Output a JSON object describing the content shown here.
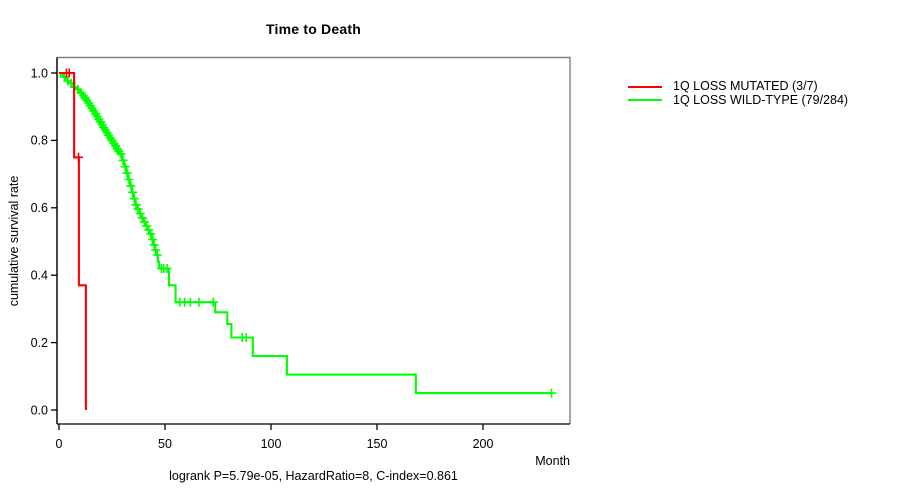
{
  "figure": {
    "title": "Time to Death",
    "x_axis_label": "Month",
    "y_axis_label": "cumulative survival rate",
    "footnote": "logrank P=5.79e-05, HazardRatio=8, C-index=0.861"
  },
  "legend": {
    "entries": [
      {
        "label": "1Q LOSS MUTATED (3/7)",
        "color": "#ff0000"
      },
      {
        "label": "1Q LOSS WILD-TYPE (79/284)",
        "color": "#00ff00"
      }
    ]
  },
  "chart_data": {
    "type": "line",
    "subtype": "kaplan-meier-step",
    "title": "Time to Death",
    "xlabel": "Month",
    "ylabel": "cumulative survival rate",
    "annotation": "logrank P=5.79e-05, HazardRatio=8, C-index=0.861",
    "x_ticks": [
      0,
      50,
      100,
      150,
      200
    ],
    "y_ticks": [
      0.0,
      0.2,
      0.4,
      0.6,
      0.8,
      1.0
    ],
    "y_tick_labels": [
      "0.0",
      "0.2",
      "0.4",
      "0.6",
      "0.8",
      "1.0"
    ],
    "xlim": [
      0,
      241
    ],
    "ylim": [
      0,
      1
    ],
    "grid": false,
    "legend_position": "right-outside",
    "axis_color": "#000000",
    "box_color": "#808080",
    "series": [
      {
        "name": "1Q LOSS MUTATED (3/7)",
        "color": "#ff0000",
        "end_time": 12.7,
        "steps": [
          [
            0,
            1.0
          ],
          [
            7.1,
            0.75
          ],
          [
            9.4,
            0.37
          ],
          [
            12.7,
            0.0
          ]
        ],
        "censor_marks": [
          [
            3.5,
            1.0
          ],
          [
            4.8,
            1.0
          ],
          [
            9.2,
            0.75
          ]
        ]
      },
      {
        "name": "1Q LOSS WILD-TYPE (79/284)",
        "color": "#00ff00",
        "end_time": 232.3,
        "steps": [
          [
            0,
            1.0
          ],
          [
            1,
            0.994
          ],
          [
            2,
            0.988
          ],
          [
            3,
            0.982
          ],
          [
            4,
            0.976
          ],
          [
            5,
            0.97
          ],
          [
            6,
            0.964
          ],
          [
            7,
            0.958
          ],
          [
            8,
            0.952
          ],
          [
            9,
            0.946
          ],
          [
            10,
            0.94
          ],
          [
            11,
            0.933
          ],
          [
            12,
            0.926
          ],
          [
            12.7,
            0.919
          ],
          [
            13.5,
            0.911
          ],
          [
            14.3,
            0.903
          ],
          [
            15.1,
            0.895
          ],
          [
            15.9,
            0.887
          ],
          [
            16.7,
            0.879
          ],
          [
            17.5,
            0.871
          ],
          [
            18.3,
            0.863
          ],
          [
            19.1,
            0.855
          ],
          [
            19.9,
            0.847
          ],
          [
            20.6,
            0.839
          ],
          [
            21.4,
            0.831
          ],
          [
            22.2,
            0.823
          ],
          [
            23,
            0.815
          ],
          [
            23.8,
            0.807
          ],
          [
            24.6,
            0.799
          ],
          [
            25.4,
            0.791
          ],
          [
            26.2,
            0.783
          ],
          [
            27,
            0.775
          ],
          [
            27.8,
            0.768
          ],
          [
            28.8,
            0.76
          ],
          [
            29.8,
            0.741
          ],
          [
            30.8,
            0.722
          ],
          [
            31.7,
            0.703
          ],
          [
            32.6,
            0.684
          ],
          [
            33.5,
            0.665
          ],
          [
            34.3,
            0.646
          ],
          [
            35.1,
            0.627
          ],
          [
            35.9,
            0.609
          ],
          [
            36.9,
            0.596
          ],
          [
            37.9,
            0.583
          ],
          [
            38.9,
            0.57
          ],
          [
            39.9,
            0.558
          ],
          [
            40.9,
            0.546
          ],
          [
            41.9,
            0.534
          ],
          [
            42.9,
            0.522
          ],
          [
            43.8,
            0.506
          ],
          [
            44.6,
            0.49
          ],
          [
            45.3,
            0.475
          ],
          [
            46,
            0.46
          ],
          [
            46.6,
            0.44
          ],
          [
            47.2,
            0.42
          ],
          [
            51.9,
            0.37
          ],
          [
            55,
            0.32
          ],
          [
            73.7,
            0.29
          ],
          [
            79.4,
            0.255
          ],
          [
            81.3,
            0.215
          ],
          [
            91.4,
            0.16
          ],
          [
            107.5,
            0.105
          ],
          [
            168.3,
            0.05
          ]
        ],
        "censor_marks": [
          [
            2.5,
            0.988
          ],
          [
            4.2,
            0.976
          ],
          [
            5.8,
            0.97
          ],
          [
            7.3,
            0.958
          ],
          [
            8.9,
            0.952
          ],
          [
            10.5,
            0.94
          ],
          [
            11.4,
            0.933
          ],
          [
            12.3,
            0.926
          ],
          [
            13.1,
            0.919
          ],
          [
            14,
            0.911
          ],
          [
            14.8,
            0.903
          ],
          [
            15.6,
            0.895
          ],
          [
            16.4,
            0.887
          ],
          [
            17.2,
            0.879
          ],
          [
            18,
            0.871
          ],
          [
            18.8,
            0.863
          ],
          [
            19.6,
            0.855
          ],
          [
            20.3,
            0.847
          ],
          [
            21,
            0.839
          ],
          [
            21.9,
            0.831
          ],
          [
            22.7,
            0.823
          ],
          [
            23.4,
            0.815
          ],
          [
            24.2,
            0.807
          ],
          [
            25,
            0.799
          ],
          [
            25.9,
            0.791
          ],
          [
            26.7,
            0.783
          ],
          [
            27.4,
            0.775
          ],
          [
            28.2,
            0.768
          ],
          [
            29.2,
            0.76
          ],
          [
            30.2,
            0.741
          ],
          [
            31.2,
            0.722
          ],
          [
            32.1,
            0.703
          ],
          [
            33,
            0.684
          ],
          [
            33.9,
            0.665
          ],
          [
            34.7,
            0.646
          ],
          [
            35.5,
            0.627
          ],
          [
            36.3,
            0.609
          ],
          [
            37.3,
            0.596
          ],
          [
            38.3,
            0.583
          ],
          [
            39.3,
            0.57
          ],
          [
            40.3,
            0.558
          ],
          [
            41.3,
            0.546
          ],
          [
            42.3,
            0.534
          ],
          [
            43.3,
            0.522
          ],
          [
            44.1,
            0.506
          ],
          [
            44.9,
            0.49
          ],
          [
            45.6,
            0.475
          ],
          [
            46.3,
            0.46
          ],
          [
            48.3,
            0.42
          ],
          [
            49.4,
            0.42
          ],
          [
            51,
            0.42
          ],
          [
            57,
            0.32
          ],
          [
            59.3,
            0.32
          ],
          [
            62,
            0.32
          ],
          [
            66,
            0.32
          ],
          [
            72.8,
            0.32
          ],
          [
            86.4,
            0.215
          ],
          [
            88.3,
            0.215
          ],
          [
            232.3,
            0.05
          ]
        ]
      }
    ]
  }
}
